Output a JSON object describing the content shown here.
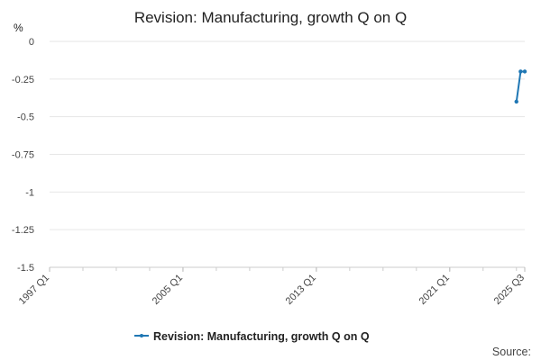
{
  "chart_data": {
    "type": "line",
    "title": "Revision: Manufacturing, growth Q on Q",
    "ylabel": "%",
    "xlabel": "",
    "ylim": [
      -1.5,
      0
    ],
    "yticks": [
      "0",
      "-0.25",
      "-0.5",
      "-0.75",
      "-1",
      "-1.25",
      "-1.5"
    ],
    "ytick_values": [
      0,
      -0.25,
      -0.5,
      -0.75,
      -1,
      -1.25,
      -1.5
    ],
    "xlim": [
      "1997 Q1",
      "2025 Q3"
    ],
    "xticks": [
      "1997 Q1",
      "2005 Q1",
      "2013 Q1",
      "2021 Q1",
      "2025 Q3"
    ],
    "grid": "horizontal",
    "legend_position": "bottom",
    "series": [
      {
        "name": "Revision: Manufacturing, growth Q on Q",
        "color": "#1f77b4",
        "x": [
          "2025 Q1",
          "2025 Q2",
          "2025 Q3"
        ],
        "values": [
          -0.4,
          -0.2,
          -0.2
        ]
      }
    ]
  },
  "footer": {
    "source_label": "Source:"
  }
}
